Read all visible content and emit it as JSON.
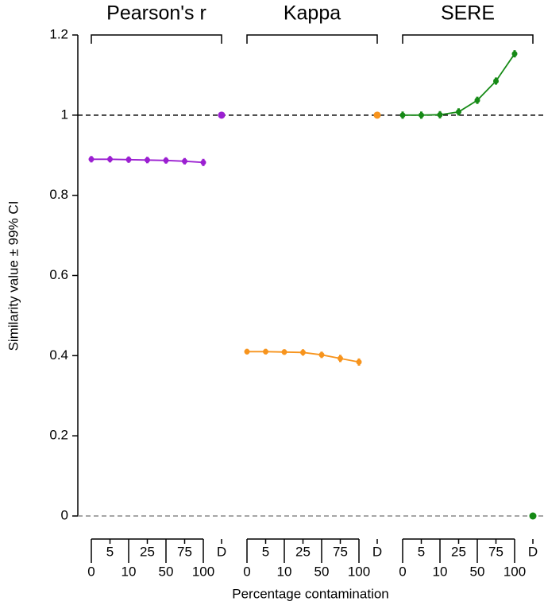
{
  "chart_data": {
    "type": "line",
    "ylabel": "Similarity value ± 99% CI",
    "xlabel": "Percentage contamination",
    "ylim": [
      0,
      1.2
    ],
    "yticks": [
      0,
      0.2,
      0.4,
      0.6,
      0.8,
      1,
      1.2
    ],
    "hlines": [
      {
        "value": 1,
        "color": "#000000"
      },
      {
        "value": 0,
        "color": "#888888"
      }
    ],
    "groups": [
      {
        "name": "Pearson's r",
        "color": "#9b1fd1",
        "categories": [
          "0",
          "5",
          "10",
          "25",
          "50",
          "75",
          "100"
        ],
        "values": [
          0.89,
          0.89,
          0.889,
          0.888,
          0.887,
          0.885,
          0.882
        ],
        "errors": [
          0.008,
          0.008,
          0.008,
          0.008,
          0.008,
          0.008,
          0.009
        ],
        "d_label": "D",
        "d_value": 1
      },
      {
        "name": "Kappa",
        "color": "#f7941d",
        "categories": [
          "0",
          "5",
          "10",
          "25",
          "50",
          "75",
          "100"
        ],
        "values": [
          0.41,
          0.41,
          0.409,
          0.408,
          0.402,
          0.393,
          0.384
        ],
        "errors": [
          0.007,
          0.007,
          0.007,
          0.008,
          0.008,
          0.009,
          0.009
        ],
        "d_label": "D",
        "d_value": 1
      },
      {
        "name": "SERE",
        "color": "#168a16",
        "categories": [
          "0",
          "5",
          "10",
          "25",
          "50",
          "75",
          "100"
        ],
        "values": [
          1.0,
          1.0,
          1.001,
          1.008,
          1.037,
          1.085,
          1.153
        ],
        "errors": [
          0.009,
          0.009,
          0.009,
          0.009,
          0.009,
          0.009,
          0.009
        ],
        "d_label": "D",
        "d_value": 0
      }
    ]
  }
}
